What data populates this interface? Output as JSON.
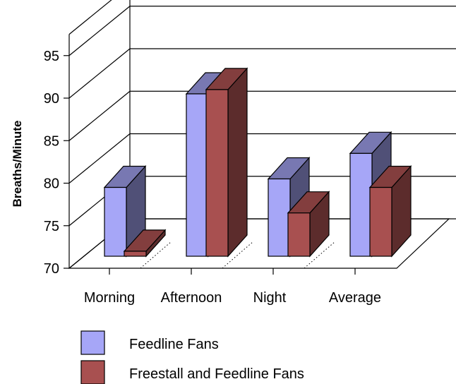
{
  "chart_data": {
    "type": "bar",
    "title": "",
    "xlabel": "",
    "ylabel": "Breaths/Minute",
    "categories": [
      "Morning",
      "Afternoon",
      "Night",
      "Average"
    ],
    "series": [
      {
        "name": "Feedline Fans",
        "values": [
          79.5,
          90.5,
          80.5,
          83.5
        ],
        "color": "#a6a6f7"
      },
      {
        "name": "Freestall and Feedline Fans",
        "values": [
          72,
          91,
          76.5,
          79.5
        ],
        "color": "#a85050"
      }
    ],
    "yticks": [
      70,
      75,
      80,
      85,
      90,
      95
    ],
    "ylim": [
      70,
      97.5
    ],
    "grid": true,
    "legend_position": "bottom",
    "style": "3d-clustered-column"
  }
}
